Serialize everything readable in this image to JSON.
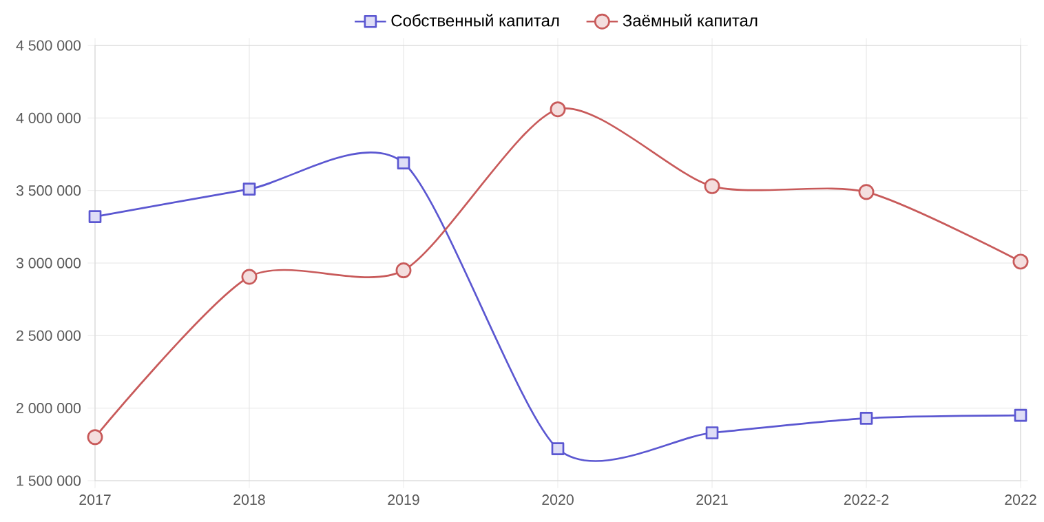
{
  "chart_data": {
    "type": "line",
    "categories": [
      "2017",
      "2018",
      "2019",
      "2020",
      "2021",
      "2022-2",
      "2022"
    ],
    "series": [
      {
        "name": "Собственный капитал",
        "color": "#5b57d1",
        "marker": "square",
        "values": [
          3320000,
          3510000,
          3690000,
          1720000,
          1830000,
          1930000,
          1950000
        ]
      },
      {
        "name": "Заёмный капитал",
        "color": "#c85a5a",
        "marker": "circle",
        "values": [
          1800000,
          2905000,
          2950000,
          4060000,
          3530000,
          3490000,
          3010000
        ]
      }
    ],
    "ylim": [
      1500000,
      4500000
    ],
    "yticks": [
      {
        "value": 1500000,
        "label": "1 500 000"
      },
      {
        "value": 2000000,
        "label": "2 000 000"
      },
      {
        "value": 2500000,
        "label": "2 500 000"
      },
      {
        "value": 3000000,
        "label": "3 000 000"
      },
      {
        "value": 3500000,
        "label": "3 500 000"
      },
      {
        "value": 4000000,
        "label": "4 000 000"
      },
      {
        "value": 4500000,
        "label": "4 500 000"
      }
    ],
    "grid": true,
    "legend": "top",
    "line_style": "solid"
  }
}
